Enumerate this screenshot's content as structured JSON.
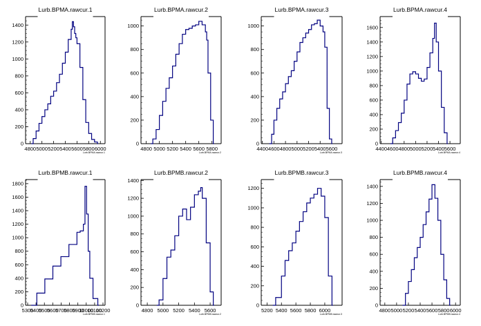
{
  "chart_data": [
    {
      "type": "histogram",
      "title": "Lurb.BPMA.rawcur.1",
      "xlabel": "Lurb.BPMA.rawcur.1",
      "ylabel": "",
      "xlim": [
        4720,
        6080
      ],
      "ylim": [
        0,
        1500
      ],
      "xticks": [
        "4800",
        "5000",
        "5200",
        "5400",
        "5600",
        "5800",
        "6000"
      ],
      "yticks": [
        "200",
        "400",
        "600",
        "800",
        "1000",
        "1200",
        "1400"
      ],
      "x": [
        4820,
        4850,
        4900,
        4950,
        5000,
        5050,
        5100,
        5150,
        5200,
        5250,
        5300,
        5350,
        5400,
        5450,
        5500,
        5520,
        5540,
        5560,
        5580,
        5600,
        5650,
        5700,
        5750,
        5800,
        5850,
        5900,
        5950
      ],
      "values": [
        0,
        60,
        150,
        240,
        320,
        400,
        470,
        560,
        620,
        720,
        820,
        950,
        1080,
        1230,
        1350,
        1440,
        1380,
        1300,
        1250,
        1180,
        900,
        520,
        250,
        120,
        50,
        20,
        0
      ]
    },
    {
      "type": "histogram",
      "title": "Lurb.BPMA.rawcur.2",
      "xlabel": "Lurb.BPMA.rawcur.2",
      "ylabel": "",
      "xlim": [
        4720,
        5940
      ],
      "ylim": [
        0,
        1080
      ],
      "xticks": [
        "4800",
        "5000",
        "5200",
        "5400",
        "5600",
        "5800"
      ],
      "yticks": [
        "200",
        "400",
        "600",
        "800",
        "1000"
      ],
      "x": [
        4870,
        4900,
        4950,
        5000,
        5050,
        5100,
        5150,
        5200,
        5250,
        5300,
        5350,
        5400,
        5450,
        5500,
        5550,
        5600,
        5650,
        5700,
        5720,
        5740,
        5780,
        5820
      ],
      "values": [
        0,
        40,
        120,
        240,
        360,
        470,
        560,
        660,
        760,
        850,
        930,
        970,
        980,
        1000,
        1010,
        1040,
        1010,
        950,
        880,
        600,
        200,
        0
      ]
    },
    {
      "type": "histogram",
      "title": "Lurb.BPMA.rawcur.3",
      "xlabel": "Lurb.BPMA.rawcur.3",
      "ylabel": "",
      "xlim": [
        4380,
        5780
      ],
      "ylim": [
        0,
        1080
      ],
      "xticks": [
        "4400",
        "4600",
        "4800",
        "5000",
        "5200",
        "5400",
        "5600"
      ],
      "yticks": [
        "200",
        "400",
        "600",
        "800",
        "1000"
      ],
      "x": [
        4520,
        4560,
        4600,
        4650,
        4700,
        4750,
        4800,
        4850,
        4900,
        4950,
        5000,
        5050,
        5100,
        5150,
        5200,
        5250,
        5300,
        5350,
        5400,
        5450,
        5480,
        5520,
        5560,
        5600
      ],
      "values": [
        0,
        80,
        200,
        300,
        380,
        440,
        510,
        570,
        620,
        700,
        780,
        860,
        900,
        940,
        970,
        1010,
        1020,
        1050,
        1000,
        950,
        820,
        300,
        40,
        0
      ]
    },
    {
      "type": "histogram",
      "title": "Lurb.BPMA.rawcur.4",
      "xlabel": "Lurb.BPMA.rawcur.4",
      "ylabel": "",
      "xlim": [
        4380,
        5780
      ],
      "ylim": [
        0,
        1750
      ],
      "xticks": [
        "4400",
        "4600",
        "4800",
        "5000",
        "5200",
        "5400",
        "5600"
      ],
      "yticks": [
        "200",
        "400",
        "600",
        "800",
        "1000",
        "1200",
        "1400",
        "1600"
      ],
      "x": [
        4560,
        4600,
        4650,
        4700,
        4750,
        4800,
        4850,
        4900,
        4950,
        5000,
        5050,
        5100,
        5150,
        5200,
        5250,
        5300,
        5330,
        5360,
        5400,
        5450,
        5500,
        5550
      ],
      "values": [
        0,
        80,
        180,
        290,
        420,
        600,
        820,
        960,
        990,
        960,
        900,
        860,
        890,
        1050,
        1250,
        1450,
        1660,
        1400,
        1000,
        500,
        150,
        0
      ]
    },
    {
      "type": "histogram",
      "title": "Lurb.BPMB.rawcur.1",
      "xlabel": "Lurb.BPMB.rawcur.1",
      "ylabel": "",
      "xlim": [
        5300,
        10250
      ],
      "ylim": [
        0,
        1860
      ],
      "xticks": [
        "5300",
        "5400",
        "5500",
        "5600",
        "5700",
        "5800",
        "5900",
        "10000",
        "10100",
        "10200"
      ],
      "yticks": [
        "200",
        "400",
        "600",
        "800",
        "1000",
        "1200",
        "1400",
        "1600",
        "1800"
      ],
      "x": [
        5650,
        6000,
        6500,
        7000,
        7500,
        8000,
        8500,
        8700,
        8900,
        9000,
        9100,
        9200,
        9300,
        9500,
        9800
      ],
      "values": [
        0,
        180,
        390,
        580,
        720,
        900,
        1080,
        1100,
        1200,
        1760,
        1350,
        800,
        400,
        100,
        0
      ]
    },
    {
      "type": "histogram",
      "title": "Lurb.BPMB.rawcur.2",
      "xlabel": "Lurb.BPMB.rawcur.2",
      "ylabel": "",
      "xlim": [
        4720,
        5740
      ],
      "ylim": [
        0,
        1410
      ],
      "xticks": [
        "4800",
        "5000",
        "5200",
        "5400",
        "5600"
      ],
      "yticks": [
        "200",
        "400",
        "600",
        "800",
        "1000",
        "1200",
        "1400"
      ],
      "x": [
        4920,
        4950,
        5000,
        5050,
        5100,
        5150,
        5200,
        5250,
        5300,
        5350,
        5400,
        5450,
        5480,
        5500,
        5550,
        5600,
        5640
      ],
      "values": [
        0,
        60,
        300,
        540,
        620,
        780,
        1000,
        1080,
        960,
        1100,
        1240,
        1280,
        1320,
        1200,
        700,
        150,
        0
      ]
    },
    {
      "type": "histogram",
      "title": "Lurb.BPMB.rawcur.3",
      "xlabel": "Lurb.BPMB.rawcur.3",
      "ylabel": "",
      "xlim": [
        5120,
        6240
      ],
      "ylim": [
        0,
        1290
      ],
      "xticks": [
        "5200",
        "5400",
        "5600",
        "5800",
        "6000"
      ],
      "yticks": [
        "200",
        "400",
        "600",
        "800",
        "1000",
        "1200"
      ],
      "x": [
        5280,
        5320,
        5400,
        5450,
        5500,
        5550,
        5600,
        5650,
        5700,
        5750,
        5800,
        5850,
        5900,
        5950,
        6000,
        6050,
        6100
      ],
      "values": [
        0,
        80,
        300,
        460,
        560,
        640,
        760,
        860,
        960,
        1050,
        1100,
        1140,
        1200,
        1120,
        900,
        300,
        0
      ]
    },
    {
      "type": "histogram",
      "title": "Lurb.BPMB.rawcur.4",
      "xlabel": "Lurb.BPMB.rawcur.4",
      "ylabel": "",
      "xlim": [
        4720,
        6080
      ],
      "ylim": [
        0,
        1480
      ],
      "xticks": [
        "4800",
        "5000",
        "5200",
        "5400",
        "5600",
        "5800",
        "6000"
      ],
      "yticks": [
        "200",
        "400",
        "600",
        "800",
        "1000",
        "1200",
        "1400"
      ],
      "x": [
        5100,
        5150,
        5200,
        5250,
        5300,
        5350,
        5400,
        5450,
        5500,
        5550,
        5600,
        5650,
        5700,
        5750,
        5800,
        5850,
        5900
      ],
      "values": [
        0,
        140,
        280,
        420,
        560,
        680,
        800,
        950,
        1100,
        1250,
        1420,
        1260,
        1000,
        600,
        300,
        80,
        0
      ]
    }
  ],
  "style": {
    "line_color": "#000080",
    "axis_color": "#000000",
    "background": "#ffffff"
  }
}
